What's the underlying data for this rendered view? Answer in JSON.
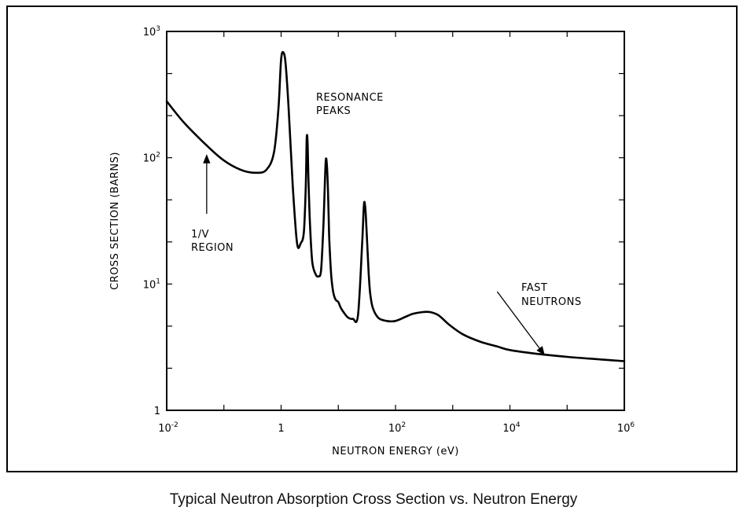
{
  "caption": "Typical Neutron Absorption Cross Section vs. Neutron Energy",
  "chart_data": {
    "type": "line",
    "xlabel": "NEUTRON ENERGY (eV)",
    "ylabel": "CROSS SECTION (BARNS)",
    "x_scale": "log",
    "y_scale": "log",
    "xlim": [
      0.01,
      1000000
    ],
    "ylim": [
      1,
      1000
    ],
    "x_ticks": [
      {
        "base": "10",
        "exp": "-2",
        "value": 0.01
      },
      {
        "base": "1",
        "exp": "",
        "value": 1
      },
      {
        "base": "10",
        "exp": "2",
        "value": 100
      },
      {
        "base": "10",
        "exp": "4",
        "value": 10000
      },
      {
        "base": "10",
        "exp": "6",
        "value": 1000000
      }
    ],
    "y_ticks": [
      {
        "base": "1",
        "exp": "",
        "value": 1
      },
      {
        "base": "10",
        "exp": "1",
        "value": 10
      },
      {
        "base": "10",
        "exp": "2",
        "value": 100
      },
      {
        "base": "10",
        "exp": "3",
        "value": 1000
      }
    ],
    "grid": false,
    "line_color": "#000000",
    "series": [
      {
        "x": [
          0.01,
          0.02,
          0.05,
          0.1,
          0.2,
          0.35,
          0.55,
          0.75,
          0.9,
          1.0,
          1.1,
          1.2,
          1.35,
          1.6,
          1.9,
          2.2,
          2.5,
          2.7,
          2.8,
          2.9,
          3.0,
          3.2,
          3.5,
          4.0,
          4.5,
          5.0,
          5.5,
          6.0,
          6.3,
          6.6,
          6.9,
          7.2,
          7.6,
          8.2,
          9.0,
          10.0,
          11.0,
          13.0,
          15.0,
          18.0,
          22.0,
          26.0,
          28.0,
          29.5,
          31.0,
          32.5,
          34.0,
          36.0,
          40.0,
          50.0,
          70.0,
          100.0,
          150.0,
          200.0,
          300.0,
          400.0,
          550.0,
          700.0,
          900.0,
          1500.0,
          3000.0,
          6000.0,
          10000.0,
          30000.0,
          100000.0,
          300000.0,
          1000000.0
        ],
        "y": [
          280,
          190,
          125,
          95,
          80,
          76,
          80,
          110,
          250,
          600,
          680,
          550,
          250,
          60,
          21,
          21,
          26,
          60,
          140,
          135,
          70,
          30,
          15,
          12,
          11.5,
          13,
          30,
          90,
          88,
          55,
          25,
          16,
          11,
          8.5,
          7.5,
          7.2,
          6.5,
          5.8,
          5.4,
          5.3,
          5.6,
          20,
          42,
          41,
          28,
          18,
          12,
          8.5,
          6.5,
          5.4,
          5.1,
          5.1,
          5.5,
          5.8,
          6.0,
          6.0,
          5.7,
          5.2,
          4.7,
          4.0,
          3.5,
          3.2,
          3.0,
          2.8,
          2.65,
          2.55,
          2.45
        ]
      }
    ],
    "annotations": [
      {
        "lines": [
          "RESONANCE",
          "PEAKS"
        ]
      },
      {
        "lines": [
          "1/V",
          "REGION"
        ],
        "arrow_from": [
          0.05,
          36
        ],
        "arrow_to": [
          0.05,
          105
        ]
      },
      {
        "lines": [
          "FAST",
          "NEUTRONS"
        ],
        "arrow_from": [
          6000,
          8.7
        ],
        "arrow_to": [
          40000,
          2.75
        ]
      }
    ]
  }
}
